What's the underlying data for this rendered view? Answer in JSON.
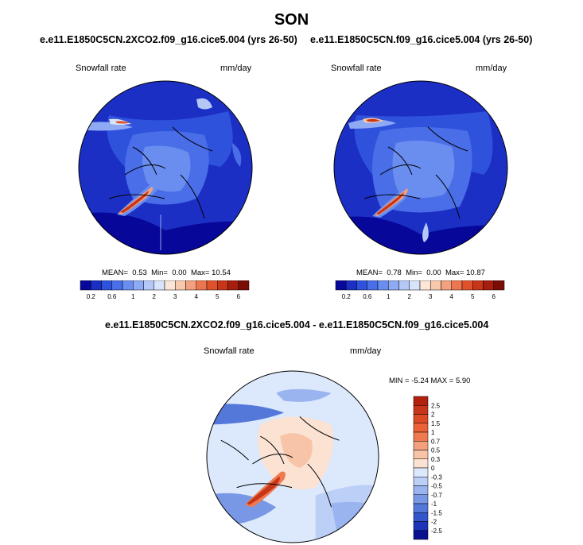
{
  "page": {
    "title": "SON",
    "diff_title": "e.e11.E1850C5CN.2XCO2.f09_g16.cice5.004 - e.e11.E1850C5CN.f09_g16.cice5.004"
  },
  "panels": [
    {
      "case": "e.e11.E1850C5CN.2XCO2.f09_g16.cice5.004 (yrs 26-50)",
      "variable": "Snowfall rate",
      "units": "mm/day",
      "mean_label": "MEAN=",
      "mean": "0.53",
      "min_label": "Min=",
      "min": "0.00",
      "max_label": "Max=",
      "max": "10.54"
    },
    {
      "case": "e.e11.E1850C5CN.f09_g16.cice5.004 (yrs 26-50)",
      "variable": "Snowfall rate",
      "units": "mm/day",
      "mean_label": "MEAN=",
      "mean": "0.78",
      "min_label": "Min=",
      "min": "0.00",
      "max_label": "Max=",
      "max": "10.87"
    }
  ],
  "diff_panel": {
    "variable": "Snowfall rate",
    "units": "mm/day",
    "minmax_text": "MIN =  -5.24 MAX =   5.90"
  },
  "chart_data": [
    {
      "type": "heatmap",
      "projection": "north polar stereographic",
      "title": "e.e11.E1850C5CN.2XCO2.f09_g16.cice5.004 (yrs 26-50)",
      "variable": "Snowfall rate",
      "units": "mm/day",
      "stats": {
        "mean": 0.53,
        "min": 0.0,
        "max": 10.54
      },
      "colorbar": {
        "orientation": "horizontal",
        "levels": [
          0.2,
          0.4,
          0.6,
          0.8,
          1,
          1.5,
          2,
          2.5,
          3,
          3.5,
          4,
          4.5,
          5,
          5.5,
          6
        ],
        "tick_labels": [
          "0.2",
          "0.6",
          "1",
          "2",
          "3",
          "4",
          "5",
          "6"
        ],
        "colors": [
          "#07079a",
          "#1c2fc4",
          "#2f52dc",
          "#4a6ee8",
          "#6a8ef0",
          "#8eaaf4",
          "#b4c8f8",
          "#d8e4fb",
          "#fbe6d8",
          "#f8c8ac",
          "#f2a07e",
          "#eb7650",
          "#e0522c",
          "#c8361a",
          "#a61e0e",
          "#7a0e05"
        ]
      }
    },
    {
      "type": "heatmap",
      "projection": "north polar stereographic",
      "title": "e.e11.E1850C5CN.f09_g16.cice5.004 (yrs 26-50)",
      "variable": "Snowfall rate",
      "units": "mm/day",
      "stats": {
        "mean": 0.78,
        "min": 0.0,
        "max": 10.87
      },
      "colorbar": {
        "orientation": "horizontal",
        "levels": [
          0.2,
          0.4,
          0.6,
          0.8,
          1,
          1.5,
          2,
          2.5,
          3,
          3.5,
          4,
          4.5,
          5,
          5.5,
          6
        ],
        "tick_labels": [
          "0.2",
          "0.6",
          "1",
          "2",
          "3",
          "4",
          "5",
          "6"
        ],
        "colors": [
          "#07079a",
          "#1c2fc4",
          "#2f52dc",
          "#4a6ee8",
          "#6a8ef0",
          "#8eaaf4",
          "#b4c8f8",
          "#d8e4fb",
          "#fbe6d8",
          "#f8c8ac",
          "#f2a07e",
          "#eb7650",
          "#e0522c",
          "#c8361a",
          "#a61e0e",
          "#7a0e05"
        ]
      }
    },
    {
      "type": "heatmap",
      "projection": "north polar stereographic",
      "title": "e.e11.E1850C5CN.2XCO2.f09_g16.cice5.004 - e.e11.E1850C5CN.f09_g16.cice5.004",
      "variable": "Snowfall rate",
      "units": "mm/day",
      "stats": {
        "min": -5.24,
        "max": 5.9
      },
      "colorbar": {
        "orientation": "vertical",
        "levels": [
          -2.5,
          -2,
          -1.5,
          -1,
          -0.7,
          -0.5,
          -0.3,
          0,
          0.3,
          0.5,
          0.7,
          1,
          1.5,
          2,
          2.5
        ],
        "tick_labels": [
          "2.5",
          "2",
          "1.5",
          "1",
          "0.7",
          "0.5",
          "0.3",
          "0",
          "-0.3",
          "-0.5",
          "-0.7",
          "-1",
          "-1.5",
          "-2",
          "-2.5"
        ],
        "colors_top_to_bottom": [
          "#b2200e",
          "#c8361a",
          "#dd4a26",
          "#ea6236",
          "#f07a50",
          "#f4a07c",
          "#f8c4a8",
          "#fbe2d2",
          "#dce8fb",
          "#bccff6",
          "#9ab4ef",
          "#7898e6",
          "#5478da",
          "#3456cc",
          "#1c34b8",
          "#0a108e"
        ]
      }
    }
  ]
}
